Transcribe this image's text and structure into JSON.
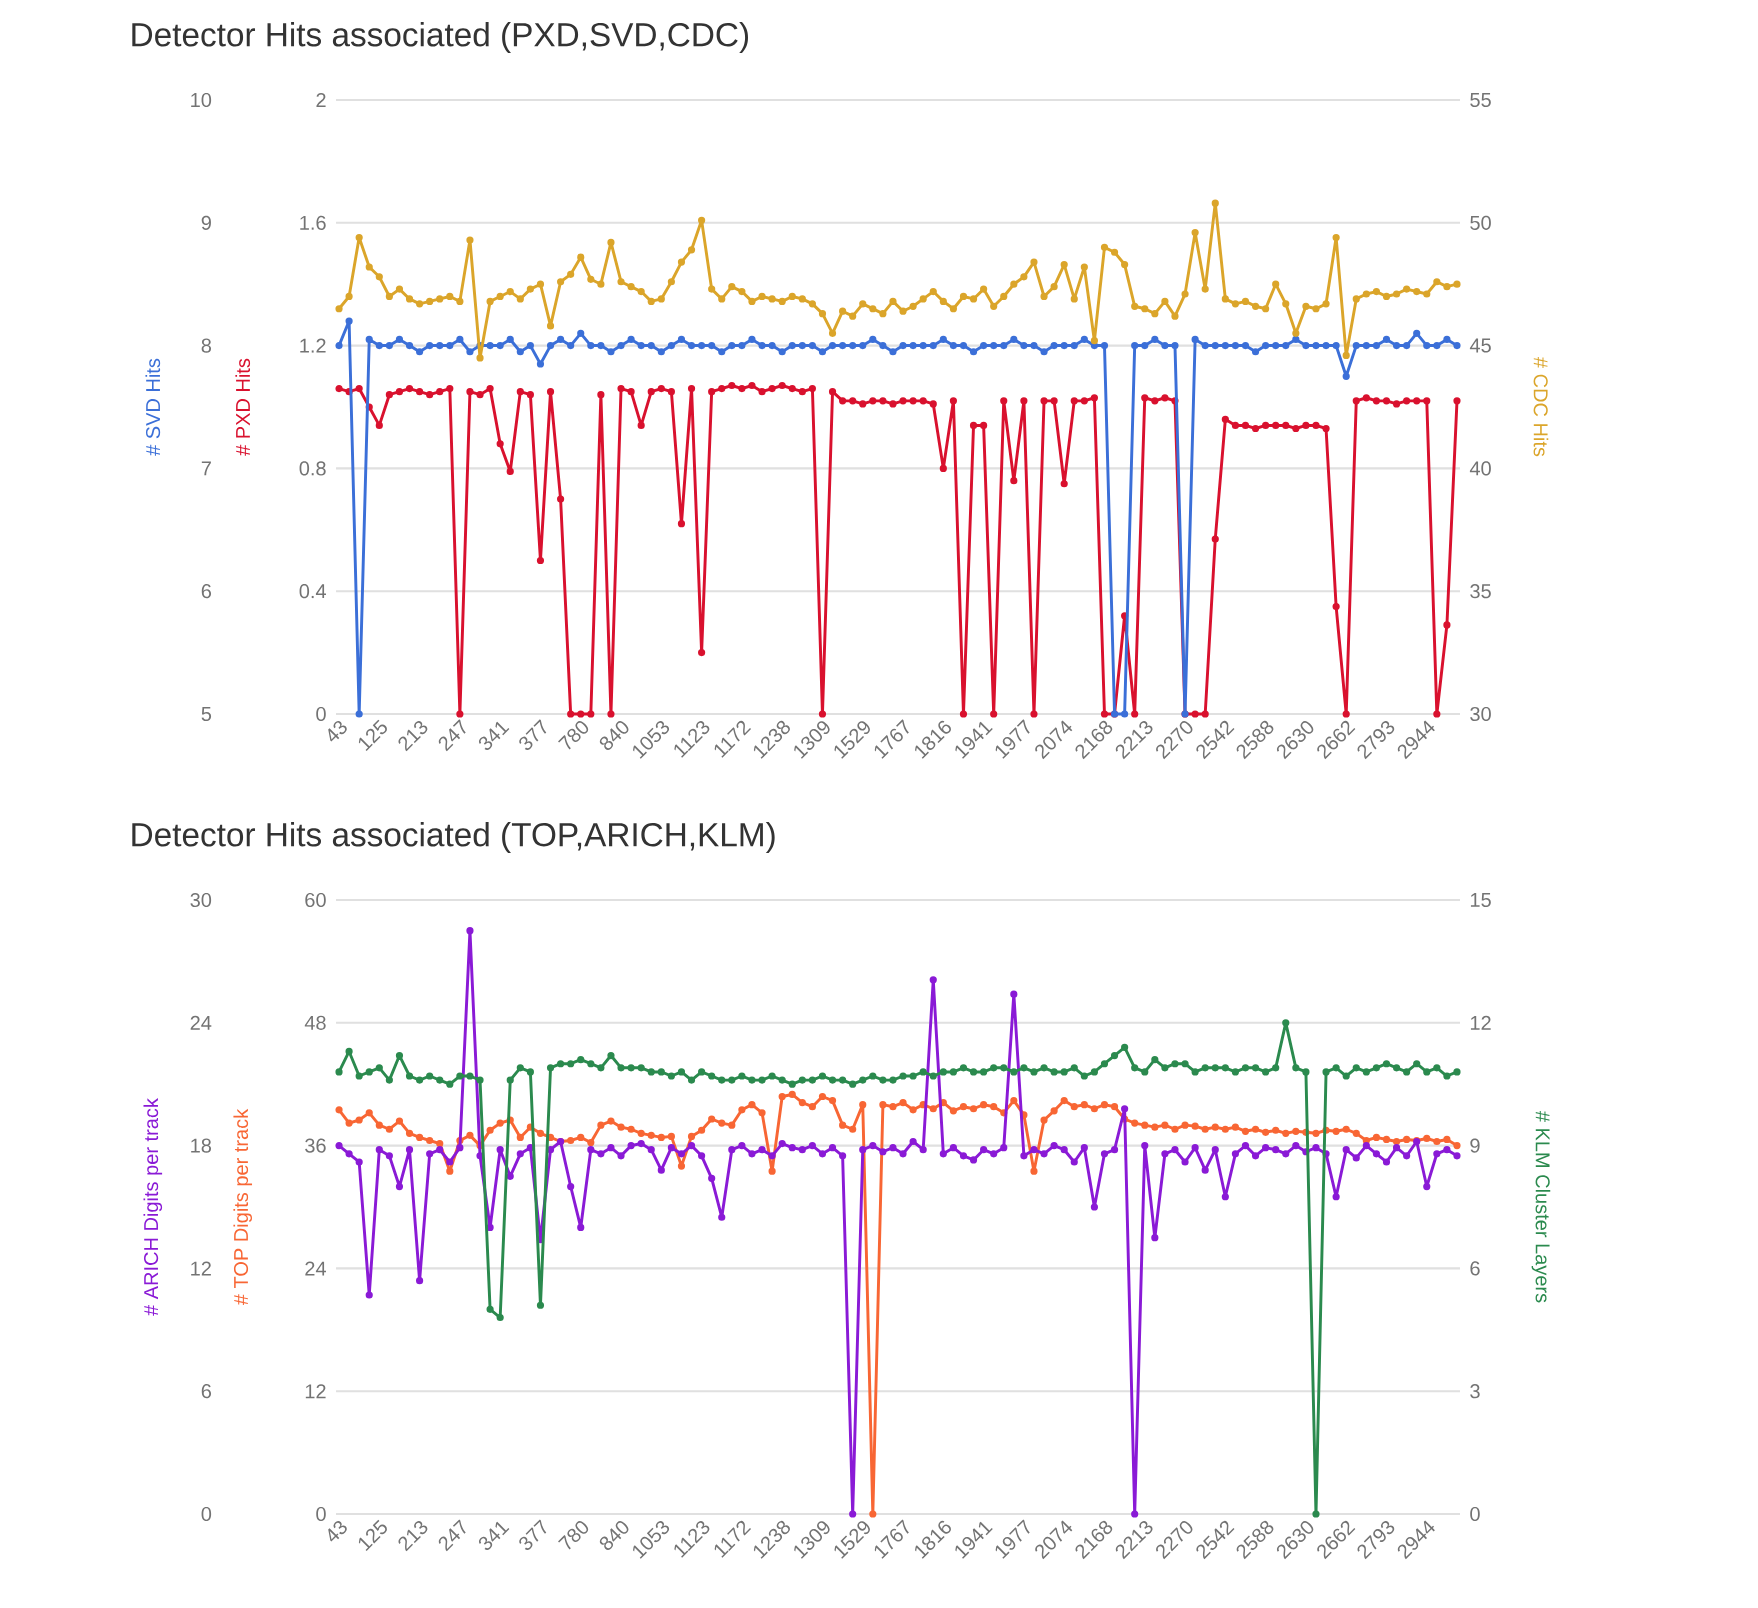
{
  "chart_data": [
    {
      "type": "line",
      "title": "Detector Hits associated (PXD,SVD,CDC)",
      "ylabel": "# PXD Hits",
      "y2label": "# CDC Hits",
      "y3label": "# SVD Hits",
      "categories": [
        "43",
        null,
        null,
        null,
        "125",
        null,
        null,
        null,
        "213",
        null,
        null,
        null,
        "247",
        null,
        null,
        null,
        "341",
        null,
        null,
        null,
        "377",
        null,
        null,
        null,
        "780",
        null,
        null,
        null,
        "840",
        null,
        null,
        null,
        "1053",
        null,
        null,
        null,
        "1123",
        null,
        null,
        null,
        "1172",
        null,
        null,
        null,
        "1238",
        null,
        null,
        null,
        "1309",
        null,
        null,
        null,
        "1529",
        null,
        null,
        null,
        "1767",
        null,
        null,
        null,
        "1816",
        null,
        null,
        null,
        "1941",
        null,
        null,
        null,
        "1977",
        null,
        null,
        null,
        "2074",
        null,
        null,
        null,
        "2168",
        null,
        null,
        null,
        "2213",
        null,
        null,
        null,
        "2270",
        null,
        null,
        null,
        "2542",
        null,
        null,
        null,
        "2588",
        null,
        null,
        null,
        "2630",
        null,
        null,
        null,
        "2662",
        null,
        null,
        null,
        "2793",
        null,
        null,
        null,
        "2944",
        null,
        null,
        null
      ],
      "ylim": [
        0,
        2
      ],
      "yticks": [
        0,
        0.4,
        0.8,
        1.2,
        1.6,
        2
      ],
      "y2lim": [
        30,
        55
      ],
      "y2ticks": [
        30,
        35,
        40,
        45,
        50,
        55
      ],
      "y3lim": [
        5,
        10
      ],
      "y3ticks": [
        5,
        6,
        7,
        8,
        9,
        10
      ],
      "grid": "y",
      "marker": "circle",
      "line_style": "solid",
      "series": [
        {
          "axis": "y3",
          "color": "#3b6fd8",
          "values": [
            8.0,
            8.2,
            5.0,
            8.05,
            8.0,
            8.0,
            8.05,
            8.0,
            7.95,
            8.0,
            8.0,
            8.0,
            8.05,
            7.95,
            8.0,
            8.0,
            8.0,
            8.05,
            7.95,
            8.0,
            7.85,
            8.0,
            8.05,
            8.0,
            8.1,
            8.0,
            8.0,
            7.95,
            8.0,
            8.05,
            8.0,
            8.0,
            7.95,
            8.0,
            8.05,
            8.0,
            8.0,
            8.0,
            7.95,
            8.0,
            8.0,
            8.05,
            8.0,
            8.0,
            7.95,
            8.0,
            8.0,
            8.0,
            7.95,
            8.0,
            8.0,
            8.0,
            8.0,
            8.05,
            8.0,
            7.95,
            8.0,
            8.0,
            8.0,
            8.0,
            8.05,
            8.0,
            8.0,
            7.95,
            8.0,
            8.0,
            8.0,
            8.05,
            8.0,
            8.0,
            7.95,
            8.0,
            8.0,
            8.0,
            8.05,
            8.0,
            8.0,
            5.0,
            5.0,
            8.0,
            8.0,
            8.05,
            8.0,
            8.0,
            5.0,
            8.05,
            8.0,
            8.0,
            8.0,
            8.0,
            8.0,
            7.95,
            8.0,
            8.0,
            8.0,
            8.05,
            8.0,
            8.0,
            8.0,
            8.0,
            7.75,
            8.0,
            8.0,
            8.0,
            8.05,
            8.0,
            8.0,
            8.1,
            8.0,
            8.0,
            8.05,
            8.0
          ]
        },
        {
          "axis": "y",
          "color": "#d9112e",
          "values": [
            1.06,
            1.05,
            1.06,
            1.0,
            0.94,
            1.04,
            1.05,
            1.06,
            1.05,
            1.04,
            1.05,
            1.06,
            0.0,
            1.05,
            1.04,
            1.06,
            0.88,
            0.79,
            1.05,
            1.04,
            0.5,
            1.05,
            0.7,
            0.0,
            0.0,
            0.0,
            1.04,
            0.0,
            1.06,
            1.05,
            0.94,
            1.05,
            1.06,
            1.05,
            0.62,
            1.06,
            0.2,
            1.05,
            1.06,
            1.07,
            1.06,
            1.07,
            1.05,
            1.06,
            1.07,
            1.06,
            1.05,
            1.06,
            0.0,
            1.05,
            1.02,
            1.02,
            1.01,
            1.02,
            1.02,
            1.01,
            1.02,
            1.02,
            1.02,
            1.01,
            0.8,
            1.02,
            0.0,
            0.94,
            0.94,
            0.0,
            1.02,
            0.76,
            1.02,
            0.0,
            1.02,
            1.02,
            0.75,
            1.02,
            1.02,
            1.03,
            0.0,
            0.0,
            0.32,
            0.0,
            1.03,
            1.02,
            1.03,
            1.02,
            0.0,
            0.0,
            0.0,
            0.57,
            0.96,
            0.94,
            0.94,
            0.93,
            0.94,
            0.94,
            0.94,
            0.93,
            0.94,
            0.94,
            0.93,
            0.35,
            0.0,
            1.02,
            1.03,
            1.02,
            1.02,
            1.01,
            1.02,
            1.02,
            1.02,
            0.0,
            0.29,
            1.02
          ]
        },
        {
          "axis": "y2",
          "color": "#dba52a",
          "values": [
            46.5,
            47.0,
            49.4,
            48.2,
            47.8,
            47.0,
            47.3,
            46.9,
            46.7,
            46.8,
            46.9,
            47.0,
            46.8,
            49.3,
            44.5,
            46.8,
            47.0,
            47.2,
            46.9,
            47.3,
            47.5,
            45.8,
            47.6,
            47.9,
            48.6,
            47.7,
            47.5,
            49.2,
            47.6,
            47.4,
            47.2,
            46.8,
            46.9,
            47.6,
            48.4,
            48.9,
            50.1,
            47.3,
            46.9,
            47.4,
            47.2,
            46.8,
            47.0,
            46.9,
            46.8,
            47.0,
            46.9,
            46.7,
            46.3,
            45.5,
            46.4,
            46.2,
            46.7,
            46.5,
            46.3,
            46.8,
            46.4,
            46.6,
            46.9,
            47.2,
            46.8,
            46.5,
            47.0,
            46.9,
            47.3,
            46.6,
            47.0,
            47.5,
            47.8,
            48.4,
            47.0,
            47.4,
            48.3,
            46.9,
            48.2,
            45.2,
            49.0,
            48.8,
            48.3,
            46.6,
            46.5,
            46.3,
            46.8,
            46.2,
            47.1,
            49.6,
            47.3,
            50.8,
            46.9,
            46.7,
            46.8,
            46.6,
            46.5,
            47.5,
            46.7,
            45.5,
            46.6,
            46.5,
            46.7,
            49.4,
            44.6,
            46.9,
            47.1,
            47.2,
            47.0,
            47.1,
            47.3,
            47.2,
            47.1,
            47.6,
            47.4,
            47.5
          ]
        }
      ]
    },
    {
      "type": "line",
      "title": "Detector Hits associated (TOP,ARICH,KLM)",
      "ylabel": "# TOP Digits per track",
      "y2label": "# KLM Cluster Layers",
      "y3label": "# ARICH Digits per track",
      "categories": [
        "43",
        null,
        null,
        null,
        "125",
        null,
        null,
        null,
        "213",
        null,
        null,
        null,
        "247",
        null,
        null,
        null,
        "341",
        null,
        null,
        null,
        "377",
        null,
        null,
        null,
        "780",
        null,
        null,
        null,
        "840",
        null,
        null,
        null,
        "1053",
        null,
        null,
        null,
        "1123",
        null,
        null,
        null,
        "1172",
        null,
        null,
        null,
        "1238",
        null,
        null,
        null,
        "1309",
        null,
        null,
        null,
        "1529",
        null,
        null,
        null,
        "1767",
        null,
        null,
        null,
        "1816",
        null,
        null,
        null,
        "1941",
        null,
        null,
        null,
        "1977",
        null,
        null,
        null,
        "2074",
        null,
        null,
        null,
        "2168",
        null,
        null,
        null,
        "2213",
        null,
        null,
        null,
        "2270",
        null,
        null,
        null,
        "2542",
        null,
        null,
        null,
        "2588",
        null,
        null,
        null,
        "2630",
        null,
        null,
        null,
        "2662",
        null,
        null,
        null,
        "2793",
        null,
        null,
        null,
        "2944",
        null,
        null,
        null
      ],
      "ylim": [
        0,
        60
      ],
      "yticks": [
        0,
        12,
        24,
        36,
        48,
        60
      ],
      "y2lim": [
        0,
        15
      ],
      "y2ticks": [
        0,
        3,
        6,
        9,
        12,
        15
      ],
      "y3lim": [
        0,
        30
      ],
      "y3ticks": [
        0,
        6,
        12,
        18,
        24,
        30
      ],
      "grid": "y",
      "marker": "circle",
      "line_style": "solid",
      "series": [
        {
          "axis": "y2",
          "color": "#2b8a4e",
          "values": [
            10.8,
            11.3,
            10.7,
            10.8,
            10.9,
            10.6,
            11.2,
            10.7,
            10.6,
            10.7,
            10.6,
            10.5,
            10.7,
            10.7,
            10.6,
            5.0,
            4.8,
            10.6,
            10.9,
            10.8,
            5.1,
            10.9,
            11.0,
            11.0,
            11.1,
            11.0,
            10.9,
            11.2,
            10.9,
            10.9,
            10.9,
            10.8,
            10.8,
            10.7,
            10.8,
            10.6,
            10.8,
            10.7,
            10.6,
            10.6,
            10.7,
            10.6,
            10.6,
            10.7,
            10.6,
            10.5,
            10.6,
            10.6,
            10.7,
            10.6,
            10.6,
            10.5,
            10.6,
            10.7,
            10.6,
            10.6,
            10.7,
            10.7,
            10.8,
            10.7,
            10.8,
            10.8,
            10.9,
            10.8,
            10.8,
            10.9,
            10.9,
            10.8,
            10.9,
            10.8,
            10.9,
            10.8,
            10.8,
            10.9,
            10.7,
            10.8,
            11.0,
            11.2,
            11.4,
            10.9,
            10.8,
            11.1,
            10.9,
            11.0,
            11.0,
            10.8,
            10.9,
            10.9,
            10.9,
            10.8,
            10.9,
            10.9,
            10.8,
            10.9,
            12.0,
            10.9,
            10.8,
            0.0,
            10.8,
            10.9,
            10.7,
            10.9,
            10.8,
            10.9,
            11.0,
            10.9,
            10.8,
            11.0,
            10.8,
            10.9,
            10.7,
            10.8
          ]
        },
        {
          "axis": "y",
          "color": "#f86634",
          "values": [
            39.5,
            38.2,
            38.5,
            39.2,
            38.0,
            37.6,
            38.4,
            37.2,
            36.8,
            36.5,
            36.2,
            33.5,
            36.5,
            37.0,
            36.0,
            37.5,
            38.2,
            38.5,
            36.8,
            37.8,
            37.2,
            36.8,
            36.4,
            36.5,
            36.8,
            36.3,
            38.0,
            38.4,
            37.8,
            37.6,
            37.2,
            37.0,
            36.8,
            36.9,
            34.0,
            36.9,
            37.5,
            38.6,
            38.2,
            38.0,
            39.5,
            40.0,
            39.2,
            33.5,
            40.8,
            41.0,
            40.2,
            39.8,
            40.8,
            40.4,
            38.0,
            37.6,
            40.0,
            0.0,
            40.0,
            39.8,
            40.2,
            39.5,
            40.0,
            39.6,
            40.2,
            39.4,
            39.8,
            39.6,
            40.0,
            39.8,
            39.2,
            40.4,
            39.0,
            33.5,
            38.5,
            39.4,
            40.4,
            39.8,
            40.0,
            39.6,
            40.0,
            39.8,
            38.6,
            38.2,
            38.0,
            37.8,
            38.0,
            37.6,
            38.0,
            37.9,
            37.6,
            37.8,
            37.6,
            37.8,
            37.4,
            37.6,
            37.3,
            37.5,
            37.2,
            37.4,
            37.3,
            37.2,
            37.5,
            37.4,
            37.6,
            37.2,
            36.5,
            36.8,
            36.6,
            36.4,
            36.6,
            36.5,
            36.7,
            36.4,
            36.6,
            36.0
          ]
        },
        {
          "axis": "y3",
          "color": "#8a1ad6",
          "values": [
            18.0,
            17.6,
            17.2,
            10.7,
            17.8,
            17.5,
            16.0,
            17.8,
            11.4,
            17.6,
            17.8,
            17.2,
            17.9,
            28.5,
            17.5,
            14.0,
            17.8,
            16.5,
            17.6,
            17.9,
            13.4,
            17.8,
            18.2,
            16.0,
            14.0,
            17.8,
            17.6,
            17.9,
            17.5,
            18.0,
            18.1,
            17.8,
            16.8,
            17.9,
            17.6,
            18.0,
            17.5,
            16.4,
            14.5,
            17.8,
            18.0,
            17.6,
            17.8,
            17.5,
            18.1,
            17.9,
            17.8,
            18.0,
            17.6,
            17.9,
            17.5,
            0.0,
            17.8,
            18.0,
            17.7,
            17.9,
            17.6,
            18.2,
            17.8,
            26.1,
            17.6,
            17.9,
            17.5,
            17.3,
            17.8,
            17.6,
            17.9,
            25.4,
            17.5,
            17.8,
            17.6,
            18.0,
            17.8,
            17.2,
            17.9,
            15.0,
            17.6,
            17.8,
            19.8,
            0.0,
            18.0,
            13.5,
            17.6,
            17.8,
            17.2,
            17.9,
            16.8,
            17.8,
            15.5,
            17.6,
            18.0,
            17.5,
            17.9,
            17.8,
            17.6,
            18.0,
            17.7,
            17.9,
            17.6,
            15.5,
            17.8,
            17.4,
            18.0,
            17.6,
            17.2,
            17.9,
            17.5,
            18.2,
            16.0,
            17.6,
            17.8,
            17.5
          ]
        }
      ]
    }
  ]
}
